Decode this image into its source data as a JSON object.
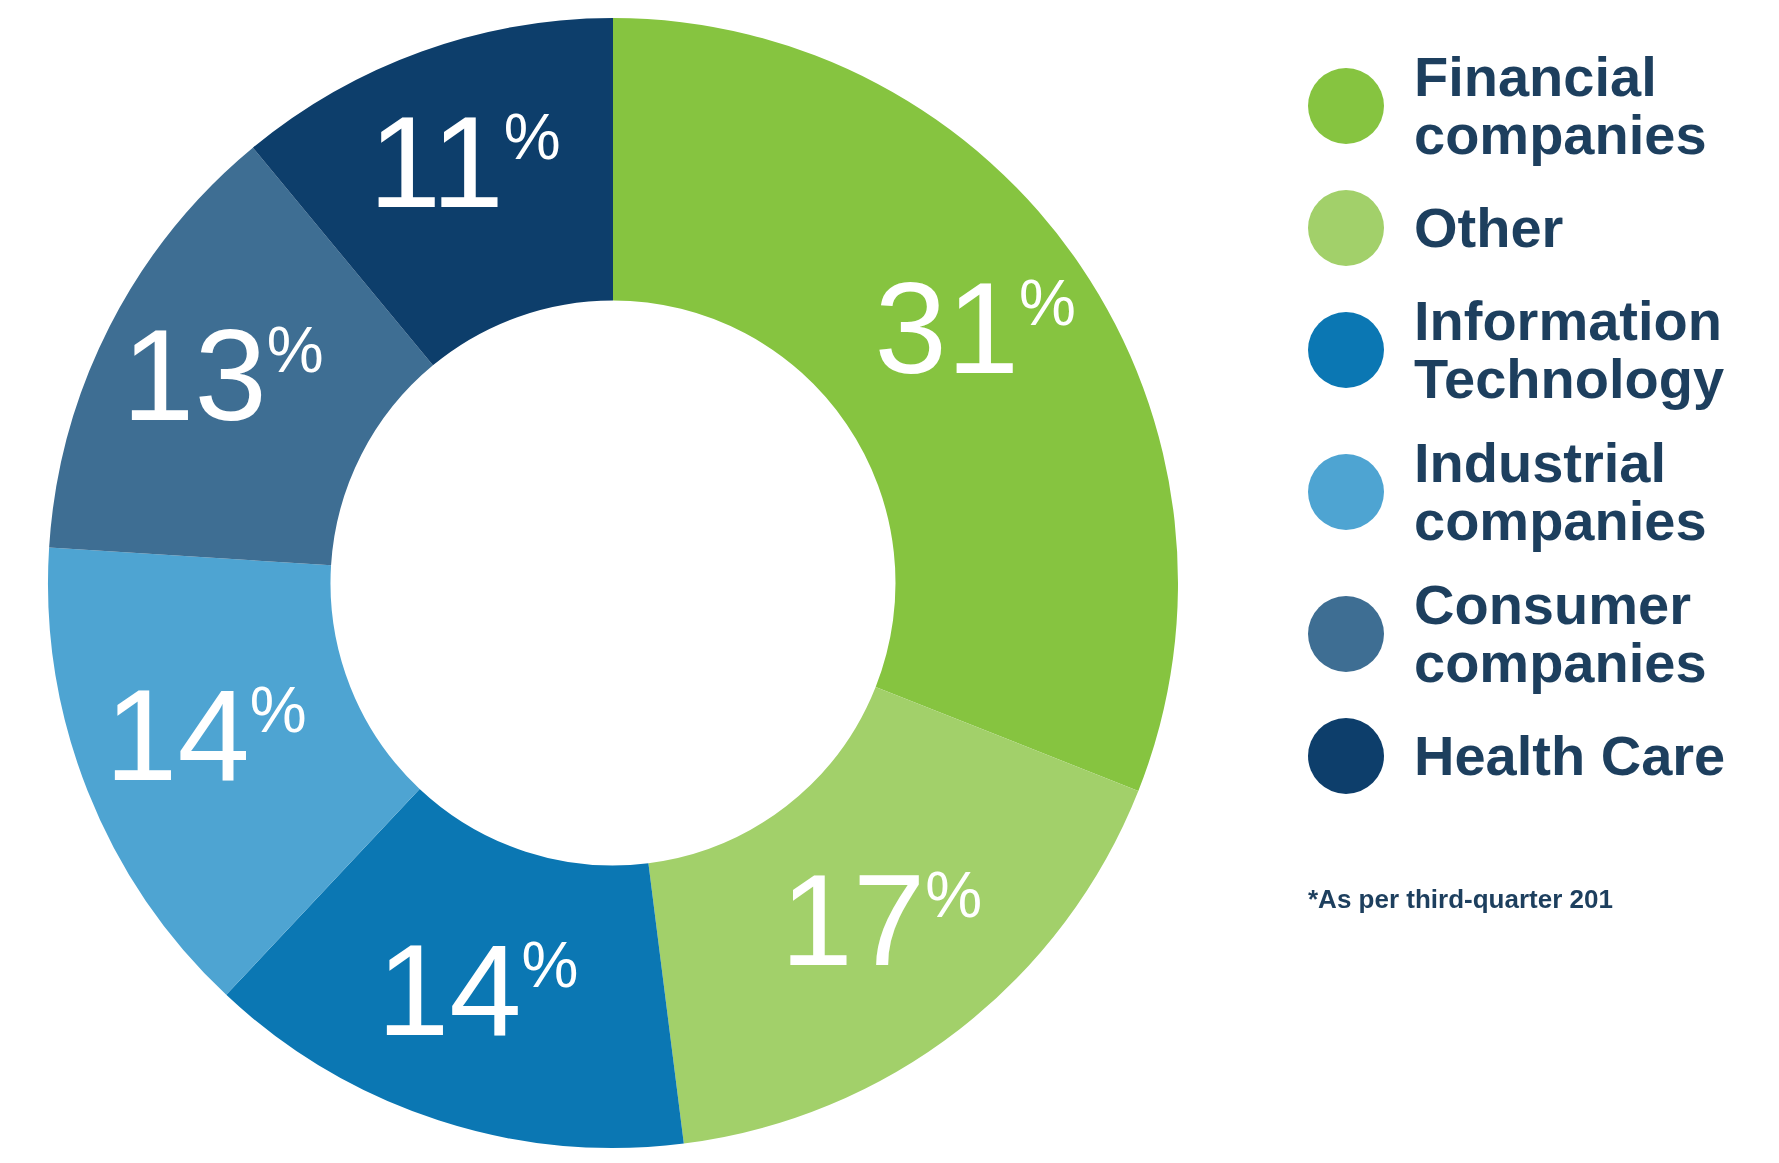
{
  "chart_data": {
    "type": "donut",
    "categories": [
      "Financial companies",
      "Other",
      "Information Technology",
      "Industrial companies",
      "Consumer companies",
      "Health Care"
    ],
    "values": [
      31,
      17,
      14,
      14,
      13,
      11
    ],
    "colors": [
      "#86c440",
      "#a2d06a",
      "#0b77b3",
      "#4ea4d2",
      "#3e6e93",
      "#0d3e6b"
    ],
    "value_labels": [
      "31$^{%}$",
      "17$^{%}$",
      "14$^{%}$",
      "14$^{%}$",
      "13$^{%}$",
      "11$^{%}$"
    ],
    "legend": "right",
    "annotations": [
      "*As per third-quarter 201"
    ]
  }
}
